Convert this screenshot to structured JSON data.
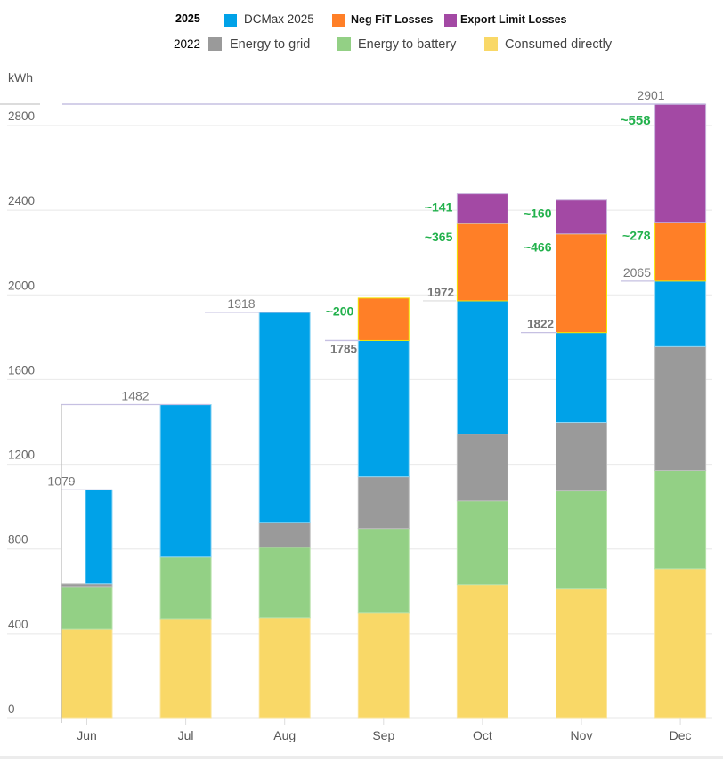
{
  "legend": {
    "rows": [
      {
        "year": "2025",
        "items": [
          {
            "label": "DCMax 2025",
            "color": "#00a2e8"
          },
          {
            "label": "Neg FiT Losses",
            "color": "#ff7f27"
          },
          {
            "label": "Export Limit Losses",
            "color": "#a349a4"
          }
        ]
      },
      {
        "year": "2022",
        "items": [
          {
            "label": "Energy to grid",
            "color": "#9a9a9a"
          },
          {
            "label": "Energy to battery",
            "color": "#93d085"
          },
          {
            "label": "Consumed directly",
            "color": "#f9d867"
          }
        ]
      }
    ]
  },
  "chart_data": {
    "type": "bar",
    "stacked": true,
    "title": "",
    "xlabel": "",
    "ylabel": "kWh",
    "ylim": [
      0,
      2900
    ],
    "yticks": [
      0,
      400,
      800,
      1200,
      1600,
      2000,
      2400,
      2800
    ],
    "grid": true,
    "legend_position": "top",
    "categories": [
      "Jun",
      "Jul",
      "Aug",
      "Sep",
      "Oct",
      "Nov",
      "Dec"
    ],
    "series": [
      {
        "name": "Consumed directly",
        "group": "2022",
        "color": "#f9d867",
        "stroke": "#fbe59c",
        "values": [
          420,
          471,
          476,
          497,
          632,
          611,
          707
        ]
      },
      {
        "name": "Energy to battery",
        "group": "2022",
        "color": "#93d085",
        "stroke": "#b8e2ab",
        "values": [
          203,
          291,
          332,
          400,
          395,
          463,
          464
        ]
      },
      {
        "name": "Energy to grid",
        "group": "2022",
        "color": "#9a9a9a",
        "stroke": "#bdbdbd",
        "values": [
          13,
          0,
          118,
          244,
          316,
          324,
          585
        ]
      },
      {
        "name": "DCMax 2025",
        "group": "2025",
        "color": "#00a2e8",
        "stroke": "#8fd6f4",
        "values": [
          443,
          720,
          992,
          644,
          629,
          424,
          309
        ]
      },
      {
        "name": "Neg FiT Losses",
        "group": "2025",
        "color": "#ff7f27",
        "stroke": "#f2e600",
        "values": [
          0,
          0,
          0,
          200,
          365,
          466,
          278
        ]
      },
      {
        "name": "Export Limit Losses",
        "group": "2025",
        "color": "#a349a4",
        "stroke": "#c9b3dc",
        "values": [
          0,
          0,
          0,
          0,
          141,
          160,
          558
        ]
      }
    ],
    "totals": [
      {
        "category": "Jun",
        "value": 1079,
        "label": "1079"
      },
      {
        "category": "Jul",
        "value": 1482,
        "label": "1482"
      },
      {
        "category": "Aug",
        "value": 1918,
        "label": "1918"
      },
      {
        "category": "Sep",
        "value": 1785,
        "label": "1785"
      },
      {
        "category": "Oct",
        "value": 1972,
        "label": "1972"
      },
      {
        "category": "Nov",
        "value": 1822,
        "label": "1822"
      },
      {
        "category": "Dec",
        "value": 2065,
        "label": "2065"
      }
    ],
    "peak": {
      "category": "Dec",
      "value": 2901,
      "label": "2901"
    },
    "loss_labels": [
      {
        "category": "Sep",
        "series": "Neg FiT Losses",
        "label": "~200"
      },
      {
        "category": "Oct",
        "series": "Export Limit Losses",
        "label": "~141"
      },
      {
        "category": "Oct",
        "series": "Neg FiT Losses",
        "label": "~365"
      },
      {
        "category": "Nov",
        "series": "Export Limit Losses",
        "label": "~160"
      },
      {
        "category": "Nov",
        "series": "Neg FiT Losses",
        "label": "~466"
      },
      {
        "category": "Dec",
        "series": "Export Limit Losses",
        "label": "~558"
      },
      {
        "category": "Dec",
        "series": "Neg FiT Losses",
        "label": "~278"
      }
    ],
    "annotation_color": "#22b14c"
  }
}
